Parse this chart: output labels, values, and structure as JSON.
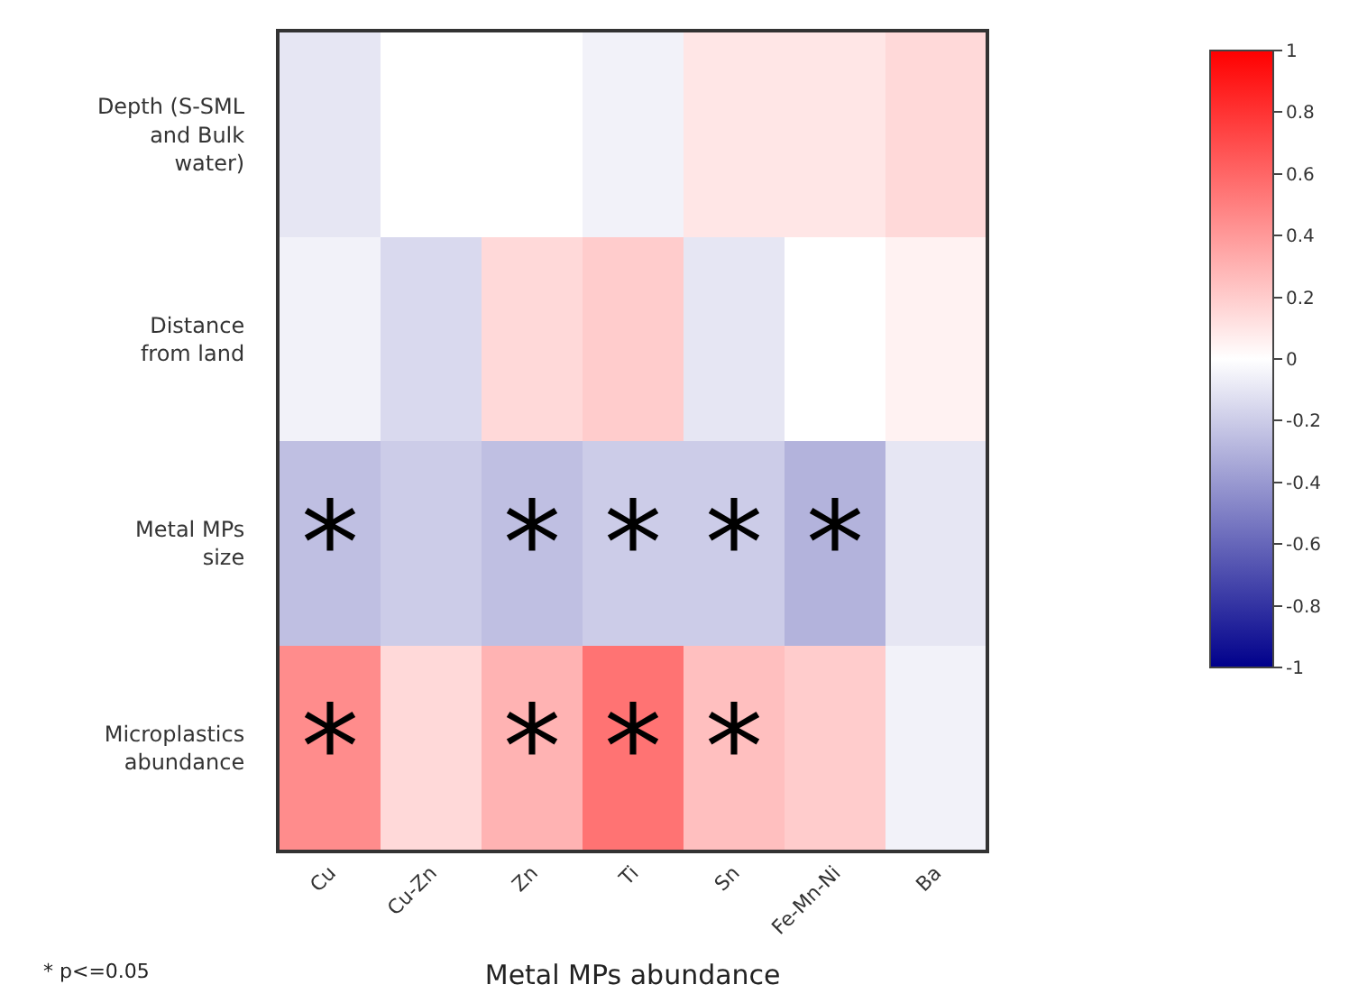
{
  "chart_data": {
    "type": "heatmap",
    "xlabel": "Metal MPs abundance",
    "categories": [
      "Cu",
      "Cu-Zn",
      "Zn",
      "Ti",
      "Sn",
      "Fe-Mn-Ni",
      "Ba"
    ],
    "y_categories": [
      "Depth (S-SML and Bulk water)",
      "Distance from land",
      "Metal MPs size",
      "Microplastics abundance"
    ],
    "cells": [
      [
        -0.1,
        0.0,
        0.0,
        -0.05,
        0.1,
        0.1,
        0.15
      ],
      [
        -0.05,
        -0.15,
        0.15,
        0.2,
        -0.1,
        0.0,
        0.05
      ],
      [
        -0.25,
        -0.2,
        -0.25,
        -0.2,
        -0.2,
        -0.3,
        -0.1
      ],
      [
        0.45,
        0.15,
        0.3,
        0.55,
        0.25,
        0.2,
        -0.05
      ]
    ],
    "cell_labels": [
      [
        null,
        null,
        null,
        null,
        null,
        null,
        null
      ],
      [
        null,
        null,
        null,
        null,
        null,
        null,
        null
      ],
      [
        "*",
        null,
        "*",
        "*",
        "*",
        "*",
        null
      ],
      [
        "*",
        null,
        "*",
        "*",
        "*",
        null,
        null
      ]
    ],
    "clim": [
      -1,
      1
    ],
    "cticks": [
      1,
      0.8,
      0.6,
      0.4,
      0.2,
      0,
      -0.2,
      -0.4,
      -0.6,
      -0.8,
      -1
    ],
    "annotations": [
      "* p<=0.05"
    ]
  }
}
